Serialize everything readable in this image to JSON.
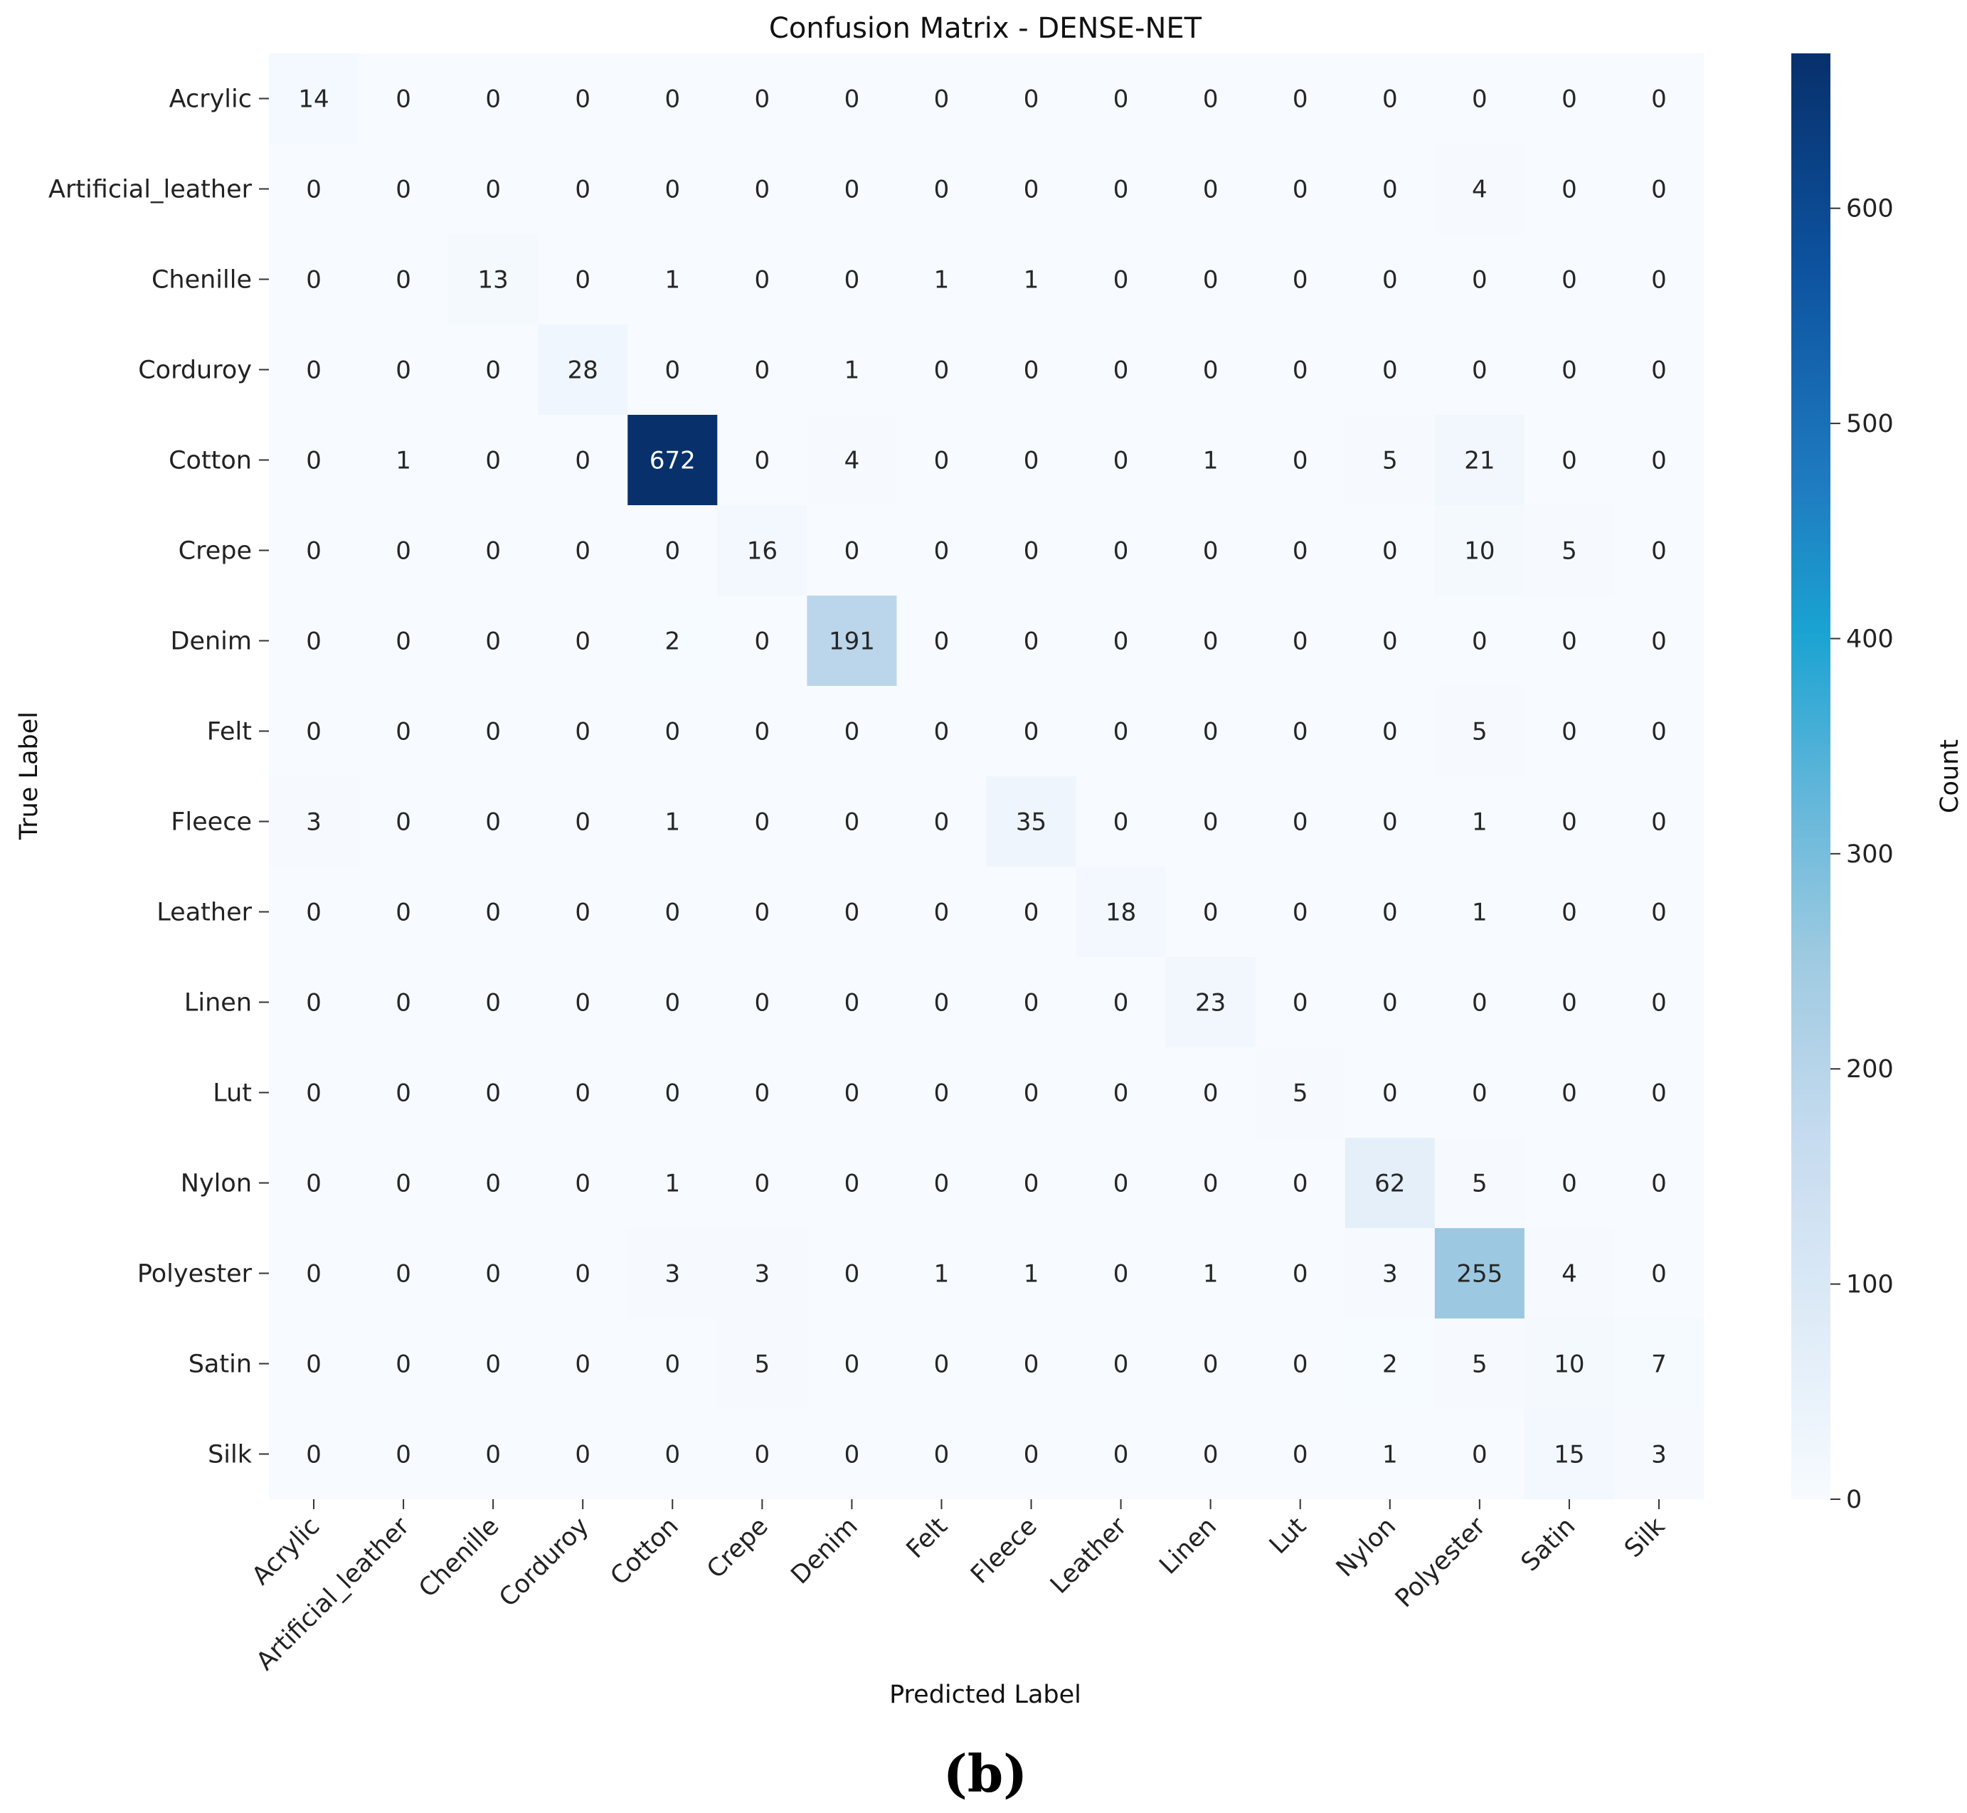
{
  "chart_data": {
    "type": "heatmap",
    "title": "Confusion Matrix - DENSE-NET",
    "xlabel": "Predicted Label",
    "ylabel": "True Label",
    "panel_label": "(b)",
    "x_categories": [
      "Acrylic",
      "Artificial_leather",
      "Chenille",
      "Corduroy",
      "Cotton",
      "Crepe",
      "Denim",
      "Felt",
      "Fleece",
      "Leather",
      "Linen",
      "Lut",
      "Nylon",
      "Polyester",
      "Satin",
      "Silk"
    ],
    "y_categories": [
      "Acrylic",
      "Artificial_leather",
      "Chenille",
      "Corduroy",
      "Cotton",
      "Crepe",
      "Denim",
      "Felt",
      "Fleece",
      "Leather",
      "Linen",
      "Lut",
      "Nylon",
      "Polyester",
      "Satin",
      "Silk"
    ],
    "values": [
      [
        14,
        0,
        0,
        0,
        0,
        0,
        0,
        0,
        0,
        0,
        0,
        0,
        0,
        0,
        0,
        0
      ],
      [
        0,
        0,
        0,
        0,
        0,
        0,
        0,
        0,
        0,
        0,
        0,
        0,
        0,
        4,
        0,
        0
      ],
      [
        0,
        0,
        13,
        0,
        1,
        0,
        0,
        1,
        1,
        0,
        0,
        0,
        0,
        0,
        0,
        0
      ],
      [
        0,
        0,
        0,
        28,
        0,
        0,
        1,
        0,
        0,
        0,
        0,
        0,
        0,
        0,
        0,
        0
      ],
      [
        0,
        1,
        0,
        0,
        672,
        0,
        4,
        0,
        0,
        0,
        1,
        0,
        5,
        21,
        0,
        0
      ],
      [
        0,
        0,
        0,
        0,
        0,
        16,
        0,
        0,
        0,
        0,
        0,
        0,
        0,
        10,
        5,
        0
      ],
      [
        0,
        0,
        0,
        0,
        2,
        0,
        191,
        0,
        0,
        0,
        0,
        0,
        0,
        0,
        0,
        0
      ],
      [
        0,
        0,
        0,
        0,
        0,
        0,
        0,
        0,
        0,
        0,
        0,
        0,
        0,
        5,
        0,
        0
      ],
      [
        3,
        0,
        0,
        0,
        1,
        0,
        0,
        0,
        35,
        0,
        0,
        0,
        0,
        1,
        0,
        0
      ],
      [
        0,
        0,
        0,
        0,
        0,
        0,
        0,
        0,
        0,
        18,
        0,
        0,
        0,
        1,
        0,
        0
      ],
      [
        0,
        0,
        0,
        0,
        0,
        0,
        0,
        0,
        0,
        0,
        23,
        0,
        0,
        0,
        0,
        0
      ],
      [
        0,
        0,
        0,
        0,
        0,
        0,
        0,
        0,
        0,
        0,
        0,
        5,
        0,
        0,
        0,
        0
      ],
      [
        0,
        0,
        0,
        0,
        1,
        0,
        0,
        0,
        0,
        0,
        0,
        0,
        62,
        5,
        0,
        0
      ],
      [
        0,
        0,
        0,
        0,
        3,
        3,
        0,
        1,
        1,
        0,
        1,
        0,
        3,
        255,
        4,
        0
      ],
      [
        0,
        0,
        0,
        0,
        0,
        5,
        0,
        0,
        0,
        0,
        0,
        0,
        2,
        5,
        10,
        7
      ],
      [
        0,
        0,
        0,
        0,
        0,
        0,
        0,
        0,
        0,
        0,
        0,
        0,
        1,
        0,
        15,
        3
      ]
    ],
    "colorbar": {
      "label": "Count",
      "range": [
        0,
        672
      ],
      "ticks": [
        0,
        100,
        200,
        300,
        400,
        500,
        600
      ],
      "colormap": "Blues"
    },
    "colors": {
      "low": "#f7fbff",
      "high": "#08306b",
      "text_dark": "#262626",
      "text_light": "#ffffff"
    }
  }
}
